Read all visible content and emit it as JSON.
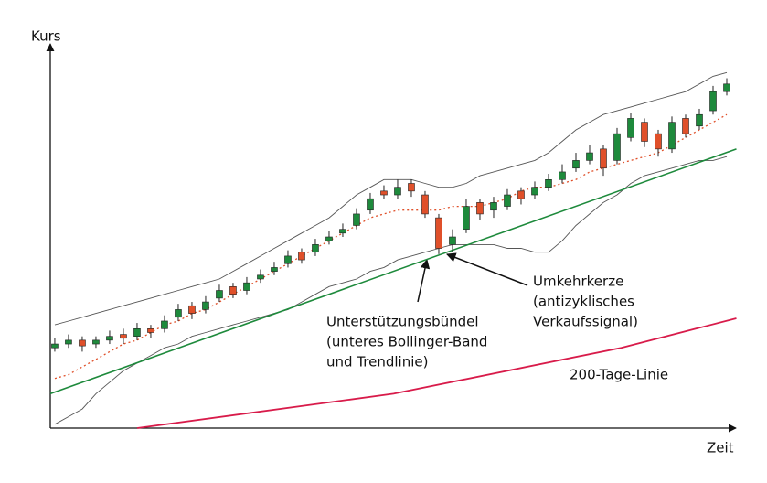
{
  "chart_data": {
    "type": "candlestick",
    "y_label": "Kurs",
    "x_label": "Zeit",
    "xlim": [
      -0.33,
      50
    ],
    "ylim": [
      0,
      100
    ],
    "x": [
      0,
      1,
      2,
      3,
      4,
      5,
      6,
      7,
      8,
      9,
      10,
      11,
      12,
      13,
      14,
      15,
      16,
      17,
      18,
      19,
      20,
      21,
      22,
      23,
      24,
      25,
      26,
      27,
      28,
      29,
      30,
      31,
      32,
      33,
      34,
      35,
      36,
      37,
      38,
      39,
      40,
      41,
      42,
      43,
      44,
      45,
      46,
      47,
      48,
      49
    ],
    "open": [
      21,
      22,
      23,
      22,
      23,
      24.5,
      24,
      26,
      26,
      29,
      32,
      31,
      34,
      37,
      36,
      39,
      41,
      43,
      46,
      46,
      49,
      51,
      53,
      57,
      62,
      61,
      64,
      61,
      55,
      48,
      52,
      59,
      57,
      58,
      62,
      61,
      63,
      65,
      68,
      70,
      73,
      70,
      76,
      80,
      77,
      73,
      81,
      79,
      83,
      88
    ],
    "high": [
      23.5,
      24.5,
      24,
      24,
      25.5,
      26,
      27.5,
      27,
      29.5,
      32.5,
      33,
      34.5,
      37.5,
      38,
      39.5,
      41.5,
      43.5,
      46.5,
      47,
      49.5,
      51.5,
      53.5,
      57.5,
      61.5,
      63.5,
      65,
      65,
      62,
      56,
      52,
      60,
      60,
      60.5,
      62.5,
      63,
      64.5,
      66.5,
      69,
      72,
      74,
      74,
      78.5,
      82.5,
      81,
      78,
      81.5,
      82,
      83.5,
      89.5,
      91.5
    ],
    "low": [
      20,
      21,
      20,
      21,
      22,
      22,
      23,
      23.5,
      25,
      28,
      28.5,
      30,
      33,
      34,
      35,
      38,
      40,
      42,
      43,
      45,
      48,
      50,
      52,
      56,
      60,
      60,
      60.5,
      55,
      45.5,
      46,
      51,
      54.5,
      55,
      57,
      58.5,
      60,
      62,
      64,
      67,
      69,
      66,
      69,
      75,
      73.5,
      71,
      72,
      76,
      78,
      82,
      87
    ],
    "close": [
      22,
      23,
      21.5,
      23,
      24,
      23.5,
      26,
      25,
      28,
      31,
      30,
      33,
      36,
      35,
      38,
      40,
      42,
      45,
      44,
      48,
      50,
      52,
      56,
      60,
      61,
      63,
      62,
      56,
      47,
      50,
      58,
      56,
      59,
      61,
      60,
      63,
      65,
      67,
      70,
      72,
      68,
      77,
      81,
      75,
      73,
      80,
      77,
      82,
      88,
      90
    ],
    "up_color": "#1e8a3c",
    "down_color": "#e0502a",
    "upper_band": {
      "color": "#555555",
      "values": [
        27,
        28,
        29,
        30,
        31,
        32,
        33,
        34,
        35,
        36,
        37,
        38,
        39,
        41,
        43,
        45,
        47,
        49,
        51,
        53,
        55,
        58,
        61,
        63,
        65,
        65,
        65,
        64,
        63,
        63,
        64,
        66,
        67,
        68,
        69,
        70,
        72,
        75,
        78,
        80,
        82,
        83,
        84,
        85,
        86,
        87,
        88,
        90,
        92,
        93
      ]
    },
    "lower_band": {
      "color": "#555555",
      "values": [
        1,
        3,
        5,
        9,
        12,
        15,
        17,
        19,
        21,
        22,
        24,
        25,
        26,
        27,
        28,
        29,
        30,
        31,
        33,
        35,
        37,
        38,
        39,
        41,
        42,
        44,
        45,
        46,
        47,
        48,
        48,
        48,
        48,
        47,
        47,
        46,
        46,
        49,
        53,
        56,
        59,
        61,
        64,
        66,
        67,
        68,
        69,
        70,
        70,
        71
      ]
    },
    "moving_average": {
      "color": "#e0502a",
      "values": [
        13,
        14,
        16,
        18,
        20,
        22,
        23,
        25,
        27,
        28,
        30,
        31,
        33,
        35,
        37,
        39,
        41,
        43,
        45,
        47,
        49,
        51,
        53,
        55,
        56,
        57,
        57,
        57,
        57,
        58,
        58,
        58,
        59,
        60,
        62,
        63,
        63,
        64,
        65,
        67,
        68,
        69,
        70,
        71,
        72,
        74,
        76,
        78,
        80,
        82
      ]
    },
    "trendline": {
      "color": "#1e8a3c",
      "x": [
        -0.33,
        49.7
      ],
      "values": [
        9,
        73
      ]
    },
    "line_200": {
      "name": "200-Tage-Linie",
      "color": "#d81b4a",
      "x": [
        6,
        24.7,
        41.3,
        49.7
      ],
      "values": [
        0,
        9,
        21,
        28.7
      ]
    },
    "annotations": [
      {
        "lines": [
          "Unterstützungsbündel",
          "(unteres Bollinger-Band",
          "und Trendlinie)"
        ]
      },
      {
        "lines": [
          "Umkehrkerze",
          "(antizyklisches",
          "Verkaufssignal)"
        ]
      }
    ]
  }
}
